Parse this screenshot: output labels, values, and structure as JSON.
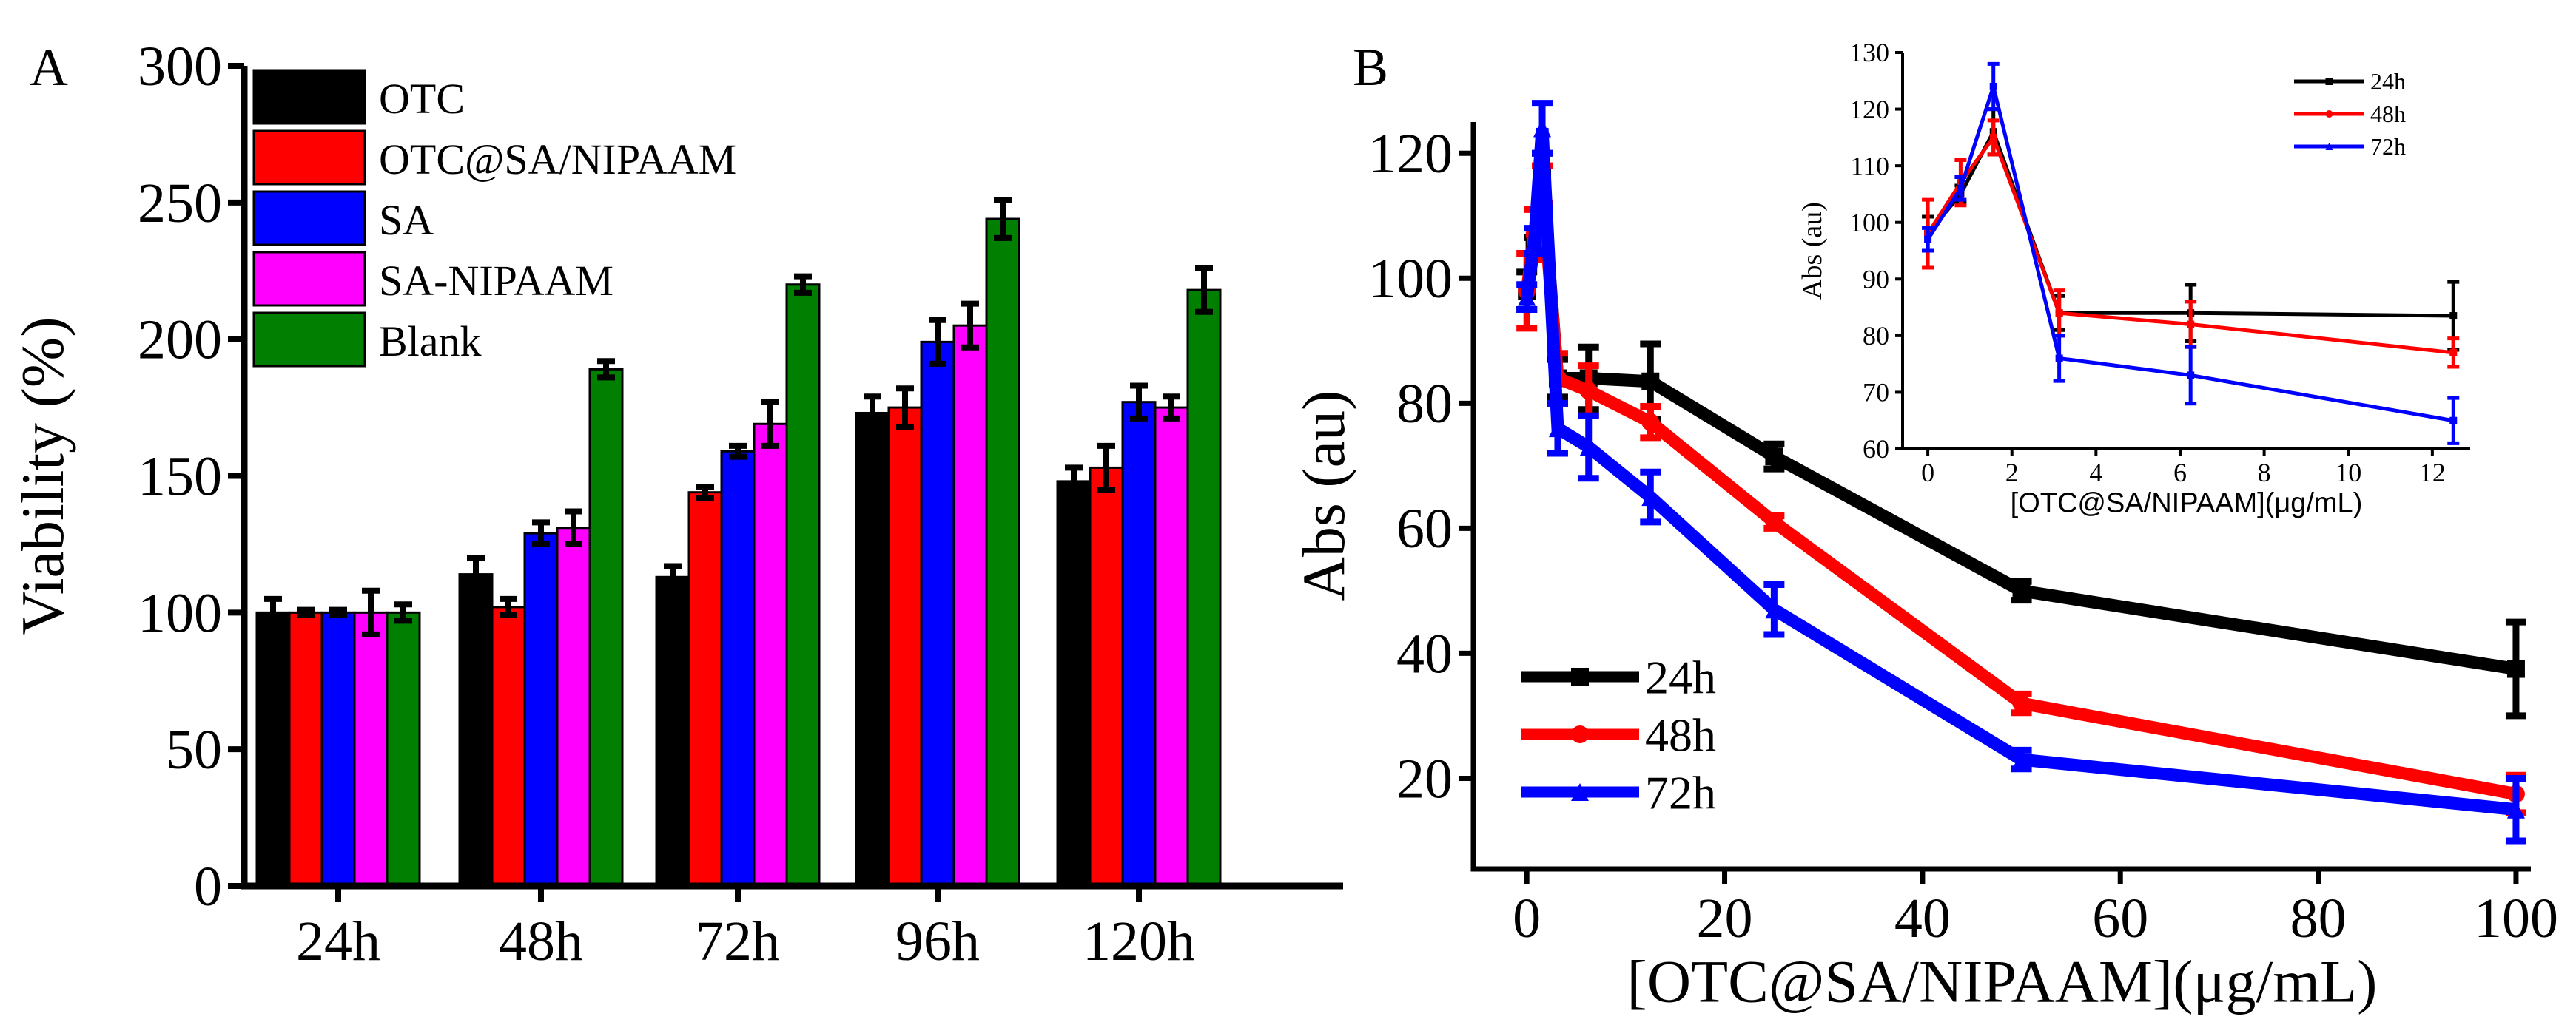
{
  "chart_data": [
    {
      "type": "bar",
      "panel_label": "A",
      "title": "",
      "xlabel": "",
      "ylabel": "Viability (%)",
      "ylim": [
        0,
        300
      ],
      "yticks": [
        0,
        50,
        100,
        150,
        200,
        250,
        300
      ],
      "categories": [
        "24h",
        "48h",
        "72h",
        "96h",
        "120h"
      ],
      "legend_position": "top-left",
      "series": [
        {
          "name": "OTC",
          "color": "#000000",
          "values": [
            100,
            114,
            113,
            173,
            148
          ],
          "errors": [
            5,
            6,
            4,
            6,
            5
          ]
        },
        {
          "name": "OTC@SA/NIPAAM",
          "color": "#ff0000",
          "values": [
            100,
            102,
            144,
            175,
            153
          ],
          "errors": [
            1,
            3,
            2,
            7,
            8
          ]
        },
        {
          "name": "SA",
          "color": "#0000ff",
          "values": [
            100,
            129,
            159,
            199,
            177
          ],
          "errors": [
            1,
            4,
            2,
            8,
            6
          ]
        },
        {
          "name": "SA-NIPAAM",
          "color": "#ff00ff",
          "values": [
            100,
            131,
            169,
            205,
            175
          ],
          "errors": [
            8,
            6,
            8,
            8,
            4
          ]
        },
        {
          "name": "Blank",
          "color": "#007f00",
          "values": [
            100,
            189,
            220,
            244,
            218
          ],
          "errors": [
            3,
            3,
            3,
            7,
            8
          ]
        }
      ]
    },
    {
      "type": "line",
      "panel_label": "B",
      "xlabel": "[OTC@SA/NIPAAM](μg/mL)",
      "ylabel": "Abs (au)",
      "xlim": [
        -5.4,
        101.5
      ],
      "ylim": [
        5.5,
        125
      ],
      "xticks": [
        0,
        20,
        40,
        60,
        80,
        100
      ],
      "yticks": [
        20,
        40,
        60,
        80,
        100,
        120
      ],
      "legend_position": "bottom-left",
      "x": [
        0,
        0.78,
        1.56,
        3.125,
        6.25,
        12.5,
        25,
        50,
        100
      ],
      "series": [
        {
          "name": "24h",
          "color": "#000000",
          "marker": "square",
          "values": [
            98,
            105,
            116,
            84,
            84,
            83.5,
            71.5,
            50,
            37.5
          ],
          "errors": [
            3,
            1.5,
            4,
            3,
            5,
            6,
            2,
            1.5,
            7.5
          ]
        },
        {
          "name": "48h",
          "color": "#ff0000",
          "marker": "circle",
          "values": [
            98,
            107,
            115,
            84,
            82,
            77,
            61,
            32,
            17.5
          ],
          "errors": [
            6,
            4,
            3,
            4,
            4,
            2.5,
            1,
            1.5,
            3
          ]
        },
        {
          "name": "72h",
          "color": "#0000ff",
          "marker": "triangle",
          "values": [
            97,
            106,
            124,
            76,
            73,
            65,
            47,
            23,
            15
          ],
          "errors": [
            2,
            2,
            4,
            4,
            5,
            4,
            4,
            1.5,
            5
          ]
        }
      ]
    },
    {
      "type": "line",
      "panel_label": "B-inset",
      "xlabel": "[OTC@SA/NIPAAM](μg/mL)",
      "ylabel": "Abs (au)",
      "xlim": [
        -0.6,
        12.9
      ],
      "ylim": [
        60,
        130
      ],
      "xticks": [
        0,
        2,
        4,
        6,
        8,
        10,
        12
      ],
      "yticks": [
        60,
        70,
        80,
        90,
        100,
        110,
        120,
        130
      ],
      "legend_position": "top-right",
      "x": [
        0,
        0.78,
        1.56,
        3.125,
        6.25,
        12.5
      ],
      "series": [
        {
          "name": "24h",
          "color": "#000000",
          "values": [
            98,
            105,
            116,
            84,
            84,
            83.5
          ],
          "errors": [
            3,
            1.5,
            4,
            3,
            5,
            6
          ]
        },
        {
          "name": "48h",
          "color": "#ff0000",
          "values": [
            98,
            107,
            115,
            84,
            82,
            77
          ],
          "errors": [
            6,
            4,
            3,
            4,
            4,
            2.5
          ]
        },
        {
          "name": "72h",
          "color": "#0000ff",
          "values": [
            97,
            106,
            124,
            76,
            73,
            65
          ],
          "errors": [
            2,
            2,
            4,
            4,
            5,
            4
          ]
        }
      ]
    }
  ]
}
